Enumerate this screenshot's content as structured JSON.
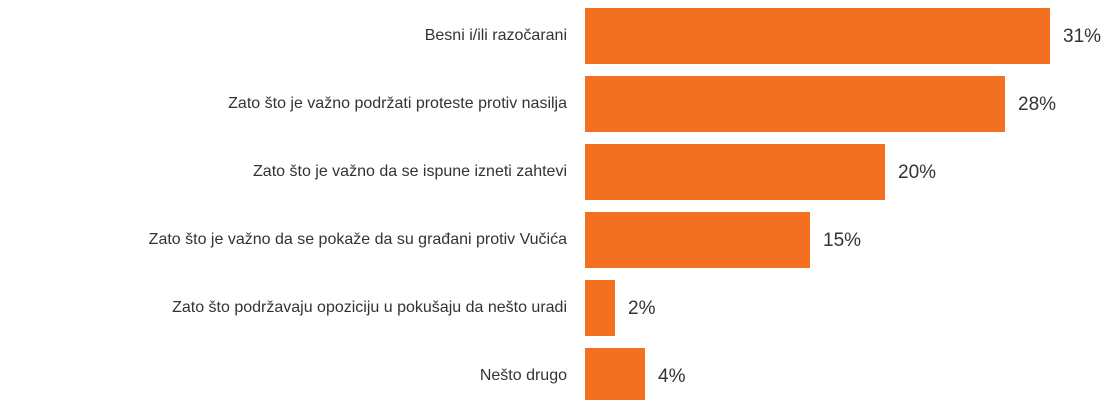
{
  "chart_data": {
    "type": "bar",
    "orientation": "horizontal",
    "categories": [
      "Besni i/ili razočarani",
      "Zato što je važno podržati proteste protiv nasilja",
      "Zato što je važno da se ispune izneti zahtevi",
      "Zato što je važno da se pokaže da su građani protiv Vučića",
      "Zato što podržavaju opoziciju u pokušaju da nešto uradi",
      "Nešto drugo"
    ],
    "values": [
      31,
      28,
      20,
      15,
      2,
      4
    ],
    "value_labels": [
      "31%",
      "28%",
      "20%",
      "15%",
      "2%",
      "4%"
    ],
    "color": "#f37021",
    "xlim": [
      0,
      31
    ]
  }
}
